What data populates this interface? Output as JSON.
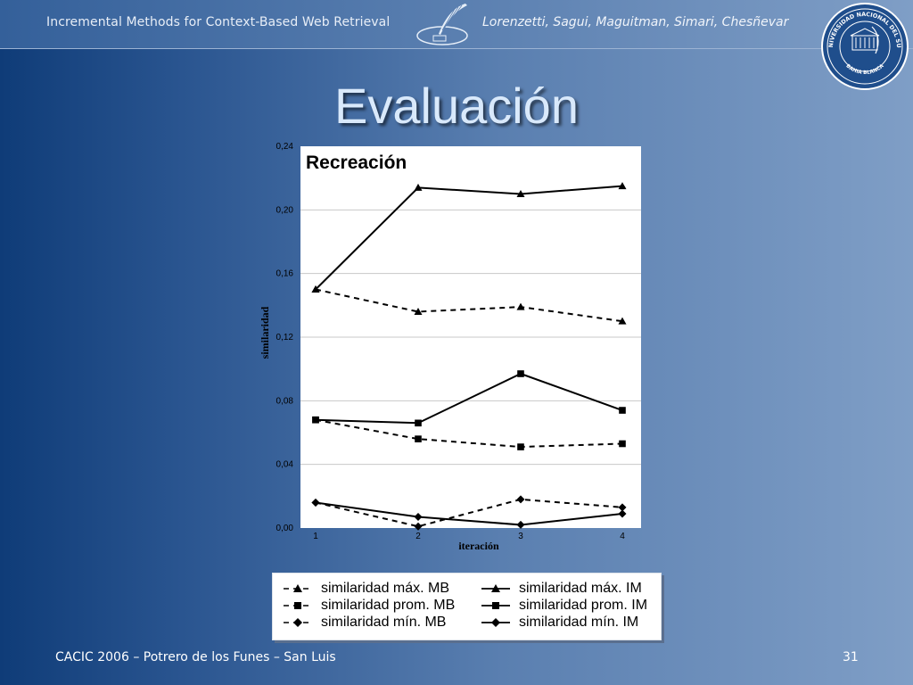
{
  "header": {
    "left_text": "Incremental Methods for Context-Based Web Retrieval",
    "right_text": "Lorenzetti, Sagui, Maguitman, Simari, Chesñevar"
  },
  "slide": {
    "title": "Evaluación"
  },
  "footer": {
    "left_text": "CACIC 2006 – Potrero de los Funes – San Luis",
    "page_number": "31"
  },
  "seal": {
    "text_top": "UNIVERSIDAD NACIONAL DEL SUR",
    "text_bottom": "BAHIA BLANCA"
  },
  "chart_data": {
    "type": "line",
    "title": "Recreación",
    "xlabel": "iteración",
    "ylabel": "similaridad",
    "x": [
      1,
      2,
      3,
      4
    ],
    "x_tick_labels": [
      "1",
      "2",
      "3",
      "4"
    ],
    "ylim": [
      0,
      0.24
    ],
    "y_ticks": [
      0,
      0.04,
      0.08,
      0.12,
      0.16,
      0.2,
      0.24
    ],
    "y_tick_labels": [
      "0,00",
      "0,04",
      "0,08",
      "0,12",
      "0,16",
      "0,20",
      "0,24"
    ],
    "grid": true,
    "legend_position": "bottom",
    "series": [
      {
        "name": "similaridad máx. MB",
        "values": [
          0.15,
          0.136,
          0.139,
          0.13
        ],
        "dash": "dashed",
        "marker": "triangle"
      },
      {
        "name": "similaridad prom. MB",
        "values": [
          0.068,
          0.056,
          0.051,
          0.053
        ],
        "dash": "dashed",
        "marker": "square"
      },
      {
        "name": "similaridad mín. MB",
        "values": [
          0.016,
          0.001,
          0.018,
          0.013
        ],
        "dash": "dashed",
        "marker": "diamond"
      },
      {
        "name": "similaridad máx. IM",
        "values": [
          0.15,
          0.214,
          0.21,
          0.215
        ],
        "dash": "solid",
        "marker": "triangle"
      },
      {
        "name": "similaridad prom. IM",
        "values": [
          0.068,
          0.066,
          0.097,
          0.074
        ],
        "dash": "solid",
        "marker": "square"
      },
      {
        "name": "similaridad mín. IM",
        "values": [
          0.016,
          0.007,
          0.002,
          0.009
        ],
        "dash": "solid",
        "marker": "diamond"
      }
    ]
  }
}
